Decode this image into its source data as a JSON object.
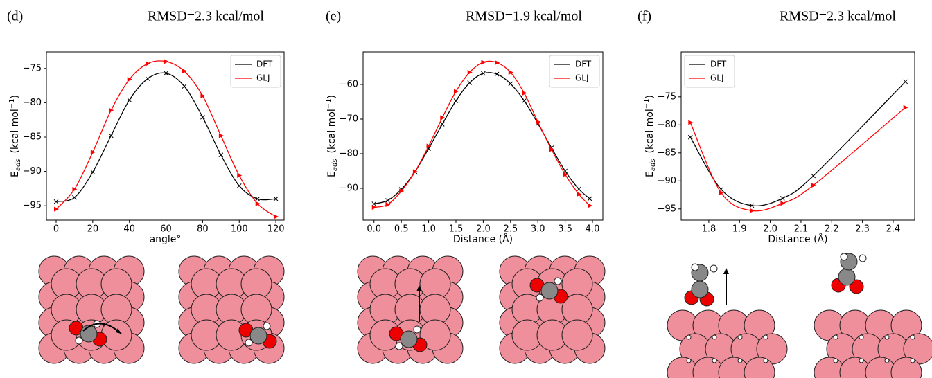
{
  "chart_data": [
    {
      "type": "line",
      "panel_label": "(d)",
      "title": "RMSD=2.3 kcal/mol",
      "xlabel": "angle°",
      "ylabel": "E",
      "ylabel_sub": "ads",
      "ylabel_unit": "(kcal mol",
      "ylabel_sup": "−1",
      "ylabel_end": ")",
      "x": [
        0,
        10,
        20,
        30,
        40,
        50,
        60,
        70,
        80,
        90,
        100,
        110,
        120
      ],
      "series": [
        {
          "name": "DFT",
          "color": "#000000",
          "marker": "x",
          "values": [
            -94.4,
            -93.8,
            -90.1,
            -84.8,
            -79.6,
            -76.5,
            -75.7,
            -77.6,
            -82.1,
            -87.6,
            -92.1,
            -94.0,
            -94.0
          ]
        },
        {
          "name": "GLJ",
          "color": "#ff0000",
          "marker": "triangle",
          "values": [
            -95.5,
            -92.6,
            -87.2,
            -81.1,
            -76.6,
            -74.3,
            -74.0,
            -75.4,
            -79.0,
            -84.8,
            -90.6,
            -94.7,
            -96.6
          ]
        }
      ],
      "xlim": [
        -5.3,
        124.5
      ],
      "ylim": [
        -97.1,
        -72.6
      ],
      "xticks": [
        0,
        20,
        40,
        60,
        80,
        100,
        120
      ],
      "yticks": [
        {
          "value": -75,
          "label": "−75"
        },
        {
          "value": -80,
          "label": "−80"
        },
        {
          "value": -85,
          "label": "−85"
        },
        {
          "value": -90,
          "label": "−90"
        },
        {
          "value": -95,
          "label": "−95"
        }
      ],
      "legend": "upper right"
    },
    {
      "type": "line",
      "panel_label": "(e)",
      "title": "RMSD=1.9 kcal/mol",
      "xlabel": "Distance (Å)",
      "ylabel": "E",
      "ylabel_sub": "ads",
      "ylabel_unit": "(kcal mol",
      "ylabel_sup": "−1",
      "ylabel_end": ")",
      "x": [
        0,
        0.25,
        0.5,
        0.75,
        1.0,
        1.25,
        1.5,
        1.75,
        2.0,
        2.25,
        2.5,
        2.75,
        3.0,
        3.25,
        3.5,
        3.75,
        3.95
      ],
      "series": [
        {
          "name": "DFT",
          "color": "#000000",
          "marker": "x",
          "values": [
            -94.5,
            -93.5,
            -90.3,
            -85.2,
            -78.5,
            -71.5,
            -64.7,
            -59.5,
            -56.8,
            -57.0,
            -59.8,
            -64.7,
            -71.3,
            -78.3,
            -85.0,
            -90.2,
            -93.0
          ]
        },
        {
          "name": "GLJ",
          "color": "#ff0000",
          "marker": "triangle",
          "values": [
            -95.5,
            -94.7,
            -90.8,
            -85.2,
            -77.8,
            -69.6,
            -62.0,
            -56.5,
            -53.6,
            -53.7,
            -56.5,
            -62.5,
            -70.8,
            -78.8,
            -86.0,
            -91.7,
            -95.0
          ]
        }
      ],
      "xlim": [
        -0.2,
        4.19
      ],
      "ylim": [
        -99.2,
        -50.6
      ],
      "xticks": [
        {
          "value": 0,
          "label": "0.0"
        },
        0.5,
        {
          "value": 1,
          "label": "1.0"
        },
        1.5,
        {
          "value": 2,
          "label": "2.0"
        },
        2.5,
        {
          "value": 3,
          "label": "3.0"
        },
        3.5,
        {
          "value": 4,
          "label": "4.0"
        }
      ],
      "yticks": [
        {
          "value": -60,
          "label": "−60"
        },
        {
          "value": -70,
          "label": "−70"
        },
        {
          "value": -80,
          "label": "−80"
        },
        {
          "value": -90,
          "label": "−90"
        }
      ],
      "legend": "upper right"
    },
    {
      "type": "line",
      "panel_label": "(f)",
      "title": "RMSD=2.3 kcal/mol",
      "xlabel": "Distance (Å)",
      "ylabel": "E",
      "ylabel_sub": "ads",
      "ylabel_unit": "(kcal mol",
      "ylabel_sup": "−1",
      "ylabel_end": ")",
      "x": [
        1.74,
        1.84,
        1.94,
        2.04,
        2.14,
        2.44
      ],
      "series": [
        {
          "name": "DFT",
          "color": "#000000",
          "marker": "x",
          "values": [
            -82.2,
            -91.5,
            -94.4,
            -93.1,
            -89.1,
            -72.3
          ]
        },
        {
          "name": "GLJ",
          "color": "#ff0000",
          "marker": "triangle",
          "values": [
            -79.6,
            -92.1,
            -95.3,
            -94.0,
            -90.8,
            -76.9
          ]
        }
      ],
      "xlim": [
        1.71,
        2.47
      ],
      "ylim": [
        -97.0,
        -67.0
      ],
      "xticks": [
        1.8,
        1.9,
        {
          "value": 2,
          "label": "2.0"
        },
        2.1,
        2.2,
        2.3,
        2.4
      ],
      "yticks": [
        {
          "value": -75,
          "label": "−75"
        },
        {
          "value": -80,
          "label": "−80"
        },
        {
          "value": -85,
          "label": "−85"
        },
        {
          "value": -90,
          "label": "−90"
        },
        {
          "value": -95,
          "label": "−95"
        }
      ],
      "legend": "upper left"
    }
  ]
}
